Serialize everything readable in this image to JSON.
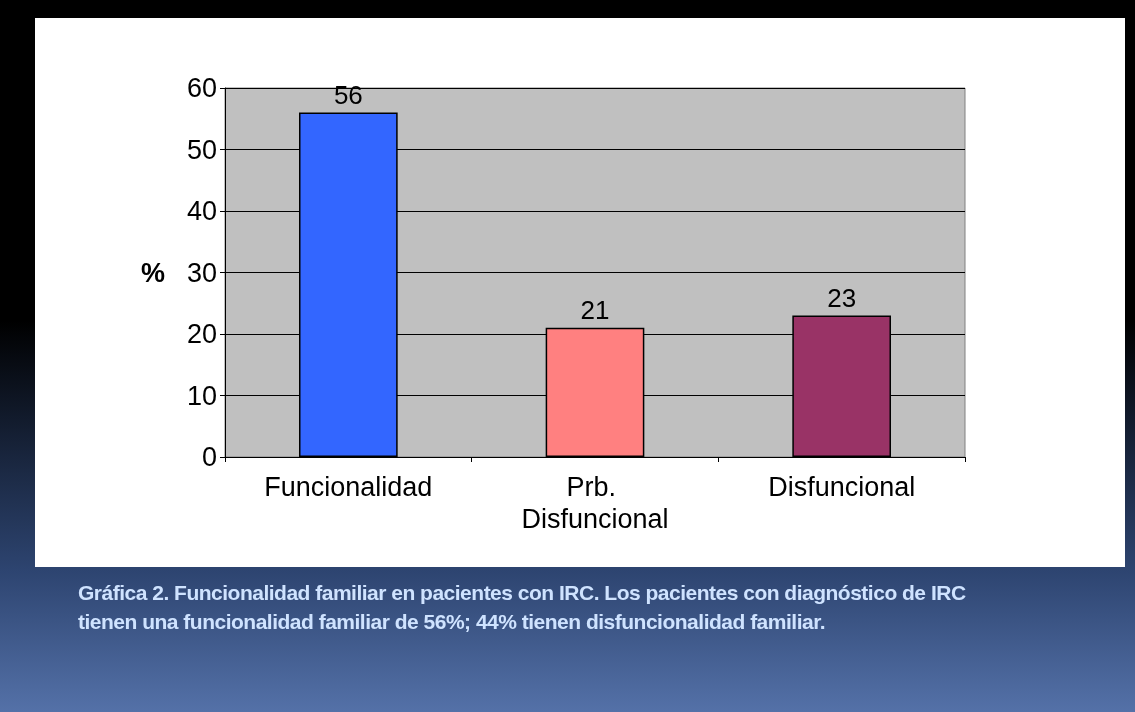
{
  "chart_data": {
    "type": "bar",
    "ylabel": "%",
    "categories": [
      "Funcionalidad",
      "Prb. Disfuncional",
      "Disfuncional"
    ],
    "values": [
      56,
      21,
      23
    ],
    "colors": [
      "#3366ff",
      "#ff8080",
      "#993366"
    ],
    "ylim": [
      0,
      60
    ],
    "yticks": [
      0,
      10,
      20,
      30,
      40,
      50,
      60
    ],
    "grid": "y",
    "data_labels": true,
    "annotations": [
      "Gráfica 2. Funcionalidad familiar en pacientes con IRC. Los pacientes con diagnóstico de IRC tienen una funcionalidad familiar de 56%; 44% tienen disfuncionalidad familiar."
    ]
  }
}
